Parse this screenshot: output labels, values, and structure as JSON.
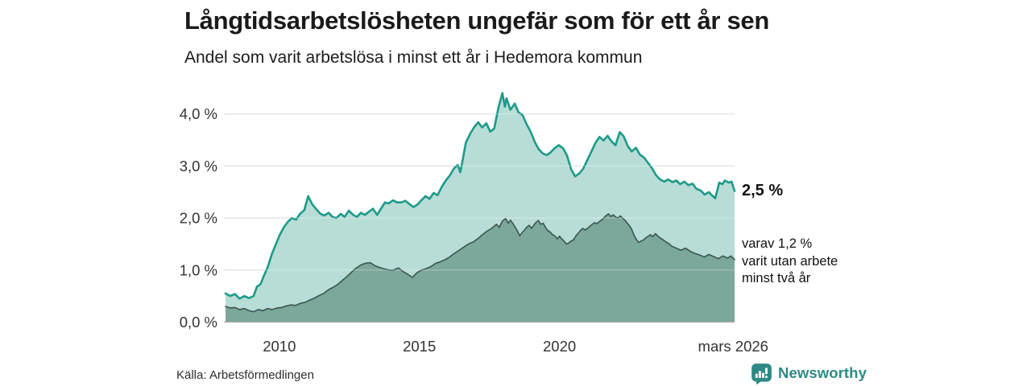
{
  "header": {
    "title": "Långtidsarbetslösheten ungefär som för ett år sen",
    "subtitle": "Andel som varit arbetslösa i minst ett år i Hedemora kommun"
  },
  "annotations": {
    "total_end_label": "2,5 %",
    "two_year_note": "varav 1,2 %\nvarit utan arbete\nminst två år"
  },
  "footer": {
    "source": "Källa: Arbetsförmedlingen",
    "brand": "Newsworthy"
  },
  "colors": {
    "total_line": "#1d9a89",
    "total_fill": "#b8ddd6",
    "two_year_line": "#3d5c54",
    "two_year_fill": "#7ca79b",
    "gridline": "#d6d6d6",
    "zero_line": "#ababab",
    "tick_text": "#333333",
    "brand_teal": "#2e8a84"
  },
  "chart_data": {
    "type": "area",
    "title": "Långtidsarbetslösheten ungefär som för ett år sen",
    "subtitle": "Andel som varit arbetslösa i minst ett år i Hedemora kommun",
    "unit": "%",
    "xlim": [
      2008.08,
      2026.25
    ],
    "ylim": [
      0,
      4.45
    ],
    "grid": true,
    "yticks": [
      {
        "value": 0,
        "label": "0,0 %"
      },
      {
        "value": 1,
        "label": "1,0 %"
      },
      {
        "value": 2,
        "label": "2,0 %"
      },
      {
        "value": 3,
        "label": "3,0 %"
      },
      {
        "value": 4,
        "label": "4,0 %"
      }
    ],
    "xticks": [
      {
        "value": 2010,
        "label": "2010"
      },
      {
        "value": 2015,
        "label": "2015"
      },
      {
        "value": 2020,
        "label": "2020"
      },
      {
        "value": 2026.2,
        "label": "mars 2026"
      }
    ],
    "series": [
      {
        "name": "Arbetslösa minst ett år",
        "end_value": 2.5,
        "end_label": "2,5 %",
        "fill": "#b8ddd6",
        "stroke": "#1d9a89",
        "line_width": 2.6,
        "points": [
          [
            2008.08,
            0.55
          ],
          [
            2008.25,
            0.5
          ],
          [
            2008.42,
            0.54
          ],
          [
            2008.58,
            0.45
          ],
          [
            2008.75,
            0.5
          ],
          [
            2008.92,
            0.46
          ],
          [
            2009.08,
            0.5
          ],
          [
            2009.2,
            0.68
          ],
          [
            2009.33,
            0.73
          ],
          [
            2009.44,
            0.88
          ],
          [
            2009.58,
            1.05
          ],
          [
            2009.73,
            1.3
          ],
          [
            2009.88,
            1.5
          ],
          [
            2010.02,
            1.68
          ],
          [
            2010.17,
            1.83
          ],
          [
            2010.31,
            1.93
          ],
          [
            2010.45,
            2.0
          ],
          [
            2010.6,
            1.97
          ],
          [
            2010.74,
            2.08
          ],
          [
            2010.89,
            2.15
          ],
          [
            2011.03,
            2.42
          ],
          [
            2011.18,
            2.26
          ],
          [
            2011.32,
            2.17
          ],
          [
            2011.47,
            2.08
          ],
          [
            2011.61,
            2.05
          ],
          [
            2011.76,
            2.1
          ],
          [
            2011.9,
            2.02
          ],
          [
            2012.04,
            2.0
          ],
          [
            2012.19,
            2.08
          ],
          [
            2012.33,
            2.02
          ],
          [
            2012.48,
            2.14
          ],
          [
            2012.62,
            2.07
          ],
          [
            2012.77,
            2.02
          ],
          [
            2012.91,
            2.1
          ],
          [
            2013.05,
            2.06
          ],
          [
            2013.2,
            2.12
          ],
          [
            2013.34,
            2.18
          ],
          [
            2013.49,
            2.06
          ],
          [
            2013.63,
            2.18
          ],
          [
            2013.77,
            2.3
          ],
          [
            2013.9,
            2.28
          ],
          [
            2014.06,
            2.34
          ],
          [
            2014.2,
            2.3
          ],
          [
            2014.35,
            2.3
          ],
          [
            2014.5,
            2.33
          ],
          [
            2014.64,
            2.27
          ],
          [
            2014.79,
            2.21
          ],
          [
            2014.93,
            2.26
          ],
          [
            2015.07,
            2.34
          ],
          [
            2015.22,
            2.42
          ],
          [
            2015.36,
            2.37
          ],
          [
            2015.51,
            2.48
          ],
          [
            2015.65,
            2.44
          ],
          [
            2015.8,
            2.6
          ],
          [
            2015.94,
            2.72
          ],
          [
            2016.09,
            2.82
          ],
          [
            2016.23,
            2.95
          ],
          [
            2016.37,
            3.02
          ],
          [
            2016.46,
            2.88
          ],
          [
            2016.52,
            3.05
          ],
          [
            2016.66,
            3.45
          ],
          [
            2016.81,
            3.62
          ],
          [
            2016.95,
            3.74
          ],
          [
            2017.1,
            3.84
          ],
          [
            2017.24,
            3.74
          ],
          [
            2017.39,
            3.82
          ],
          [
            2017.53,
            3.66
          ],
          [
            2017.67,
            3.72
          ],
          [
            2017.82,
            4.12
          ],
          [
            2017.96,
            4.4
          ],
          [
            2018.05,
            4.14
          ],
          [
            2018.11,
            4.3
          ],
          [
            2018.25,
            4.08
          ],
          [
            2018.4,
            4.2
          ],
          [
            2018.54,
            4.03
          ],
          [
            2018.68,
            3.98
          ],
          [
            2018.83,
            3.8
          ],
          [
            2018.97,
            3.66
          ],
          [
            2019.12,
            3.46
          ],
          [
            2019.26,
            3.32
          ],
          [
            2019.41,
            3.24
          ],
          [
            2019.55,
            3.21
          ],
          [
            2019.7,
            3.27
          ],
          [
            2019.84,
            3.35
          ],
          [
            2019.98,
            3.4
          ],
          [
            2020.13,
            3.34
          ],
          [
            2020.27,
            3.2
          ],
          [
            2020.42,
            2.93
          ],
          [
            2020.56,
            2.8
          ],
          [
            2020.71,
            2.86
          ],
          [
            2020.85,
            2.95
          ],
          [
            2021.0,
            3.12
          ],
          [
            2021.14,
            3.28
          ],
          [
            2021.28,
            3.44
          ],
          [
            2021.43,
            3.56
          ],
          [
            2021.57,
            3.49
          ],
          [
            2021.72,
            3.58
          ],
          [
            2021.86,
            3.47
          ],
          [
            2022.0,
            3.4
          ],
          [
            2022.15,
            3.65
          ],
          [
            2022.29,
            3.57
          ],
          [
            2022.44,
            3.38
          ],
          [
            2022.58,
            3.28
          ],
          [
            2022.73,
            3.35
          ],
          [
            2022.87,
            3.22
          ],
          [
            2023.02,
            3.16
          ],
          [
            2023.16,
            3.06
          ],
          [
            2023.3,
            2.96
          ],
          [
            2023.45,
            2.82
          ],
          [
            2023.59,
            2.74
          ],
          [
            2023.74,
            2.7
          ],
          [
            2023.88,
            2.74
          ],
          [
            2024.03,
            2.69
          ],
          [
            2024.17,
            2.72
          ],
          [
            2024.31,
            2.65
          ],
          [
            2024.46,
            2.7
          ],
          [
            2024.6,
            2.63
          ],
          [
            2024.75,
            2.66
          ],
          [
            2024.89,
            2.56
          ],
          [
            2025.04,
            2.53
          ],
          [
            2025.18,
            2.45
          ],
          [
            2025.33,
            2.5
          ],
          [
            2025.47,
            2.42
          ],
          [
            2025.56,
            2.38
          ],
          [
            2025.7,
            2.68
          ],
          [
            2025.82,
            2.65
          ],
          [
            2025.9,
            2.72
          ],
          [
            2026.05,
            2.68
          ],
          [
            2026.14,
            2.7
          ],
          [
            2026.25,
            2.52
          ]
        ]
      },
      {
        "name": "varav utan arbete minst två år",
        "end_value": 1.2,
        "end_label": "varav 1,2 % varit utan arbete minst två år",
        "fill": "#7ca79b",
        "stroke": "#3d5c54",
        "line_width": 1.7,
        "points": [
          [
            2008.08,
            0.3
          ],
          [
            2008.25,
            0.27
          ],
          [
            2008.42,
            0.28
          ],
          [
            2008.58,
            0.24
          ],
          [
            2008.75,
            0.26
          ],
          [
            2008.92,
            0.22
          ],
          [
            2009.08,
            0.2
          ],
          [
            2009.25,
            0.24
          ],
          [
            2009.42,
            0.22
          ],
          [
            2009.58,
            0.26
          ],
          [
            2009.75,
            0.24
          ],
          [
            2009.92,
            0.27
          ],
          [
            2010.08,
            0.28
          ],
          [
            2010.25,
            0.31
          ],
          [
            2010.42,
            0.33
          ],
          [
            2010.58,
            0.32
          ],
          [
            2010.75,
            0.36
          ],
          [
            2010.92,
            0.38
          ],
          [
            2011.08,
            0.42
          ],
          [
            2011.25,
            0.46
          ],
          [
            2011.42,
            0.51
          ],
          [
            2011.58,
            0.55
          ],
          [
            2011.75,
            0.62
          ],
          [
            2011.92,
            0.67
          ],
          [
            2012.08,
            0.72
          ],
          [
            2012.25,
            0.8
          ],
          [
            2012.42,
            0.88
          ],
          [
            2012.58,
            0.96
          ],
          [
            2012.75,
            1.04
          ],
          [
            2012.92,
            1.1
          ],
          [
            2013.08,
            1.13
          ],
          [
            2013.25,
            1.14
          ],
          [
            2013.42,
            1.08
          ],
          [
            2013.58,
            1.05
          ],
          [
            2013.75,
            1.02
          ],
          [
            2013.92,
            1.0
          ],
          [
            2014.08,
            1.0
          ],
          [
            2014.25,
            1.04
          ],
          [
            2014.42,
            0.97
          ],
          [
            2014.58,
            0.92
          ],
          [
            2014.75,
            0.86
          ],
          [
            2014.92,
            0.95
          ],
          [
            2015.08,
            1.0
          ],
          [
            2015.25,
            1.03
          ],
          [
            2015.42,
            1.07
          ],
          [
            2015.58,
            1.13
          ],
          [
            2015.75,
            1.16
          ],
          [
            2015.92,
            1.2
          ],
          [
            2016.08,
            1.25
          ],
          [
            2016.25,
            1.32
          ],
          [
            2016.42,
            1.38
          ],
          [
            2016.58,
            1.44
          ],
          [
            2016.75,
            1.5
          ],
          [
            2016.92,
            1.54
          ],
          [
            2017.08,
            1.6
          ],
          [
            2017.25,
            1.68
          ],
          [
            2017.42,
            1.75
          ],
          [
            2017.58,
            1.8
          ],
          [
            2017.75,
            1.88
          ],
          [
            2017.85,
            1.82
          ],
          [
            2017.96,
            1.94
          ],
          [
            2018.08,
            1.99
          ],
          [
            2018.17,
            1.9
          ],
          [
            2018.25,
            1.96
          ],
          [
            2018.33,
            1.9
          ],
          [
            2018.42,
            1.82
          ],
          [
            2018.5,
            1.75
          ],
          [
            2018.58,
            1.66
          ],
          [
            2018.67,
            1.72
          ],
          [
            2018.75,
            1.77
          ],
          [
            2018.83,
            1.82
          ],
          [
            2018.92,
            1.86
          ],
          [
            2019.0,
            1.8
          ],
          [
            2019.08,
            1.86
          ],
          [
            2019.17,
            1.92
          ],
          [
            2019.25,
            1.95
          ],
          [
            2019.33,
            1.88
          ],
          [
            2019.42,
            1.9
          ],
          [
            2019.5,
            1.82
          ],
          [
            2019.58,
            1.76
          ],
          [
            2019.67,
            1.73
          ],
          [
            2019.75,
            1.68
          ],
          [
            2019.83,
            1.66
          ],
          [
            2019.92,
            1.6
          ],
          [
            2020.0,
            1.65
          ],
          [
            2020.08,
            1.6
          ],
          [
            2020.17,
            1.55
          ],
          [
            2020.25,
            1.5
          ],
          [
            2020.33,
            1.52
          ],
          [
            2020.42,
            1.56
          ],
          [
            2020.5,
            1.58
          ],
          [
            2020.58,
            1.65
          ],
          [
            2020.67,
            1.71
          ],
          [
            2020.75,
            1.76
          ],
          [
            2020.83,
            1.8
          ],
          [
            2020.92,
            1.77
          ],
          [
            2021.0,
            1.8
          ],
          [
            2021.08,
            1.84
          ],
          [
            2021.17,
            1.88
          ],
          [
            2021.25,
            1.91
          ],
          [
            2021.33,
            1.89
          ],
          [
            2021.42,
            1.93
          ],
          [
            2021.5,
            1.96
          ],
          [
            2021.58,
            2.0
          ],
          [
            2021.67,
            2.05
          ],
          [
            2021.75,
            2.08
          ],
          [
            2021.83,
            2.03
          ],
          [
            2021.92,
            2.06
          ],
          [
            2022.0,
            2.02
          ],
          [
            2022.08,
            2.0
          ],
          [
            2022.17,
            2.04
          ],
          [
            2022.25,
            2.0
          ],
          [
            2022.33,
            1.96
          ],
          [
            2022.42,
            1.9
          ],
          [
            2022.5,
            1.85
          ],
          [
            2022.58,
            1.78
          ],
          [
            2022.67,
            1.66
          ],
          [
            2022.75,
            1.58
          ],
          [
            2022.83,
            1.53
          ],
          [
            2022.92,
            1.56
          ],
          [
            2023.0,
            1.58
          ],
          [
            2023.08,
            1.62
          ],
          [
            2023.17,
            1.65
          ],
          [
            2023.25,
            1.68
          ],
          [
            2023.33,
            1.64
          ],
          [
            2023.42,
            1.7
          ],
          [
            2023.5,
            1.66
          ],
          [
            2023.58,
            1.62
          ],
          [
            2023.67,
            1.59
          ],
          [
            2023.75,
            1.56
          ],
          [
            2023.83,
            1.53
          ],
          [
            2023.92,
            1.5
          ],
          [
            2024.0,
            1.46
          ],
          [
            2024.17,
            1.42
          ],
          [
            2024.33,
            1.38
          ],
          [
            2024.5,
            1.42
          ],
          [
            2024.67,
            1.36
          ],
          [
            2024.83,
            1.32
          ],
          [
            2025.0,
            1.29
          ],
          [
            2025.17,
            1.25
          ],
          [
            2025.33,
            1.3
          ],
          [
            2025.5,
            1.26
          ],
          [
            2025.67,
            1.22
          ],
          [
            2025.83,
            1.27
          ],
          [
            2026.0,
            1.23
          ],
          [
            2026.12,
            1.27
          ],
          [
            2026.25,
            1.2
          ]
        ]
      }
    ],
    "legend_position": "right-annotations"
  }
}
